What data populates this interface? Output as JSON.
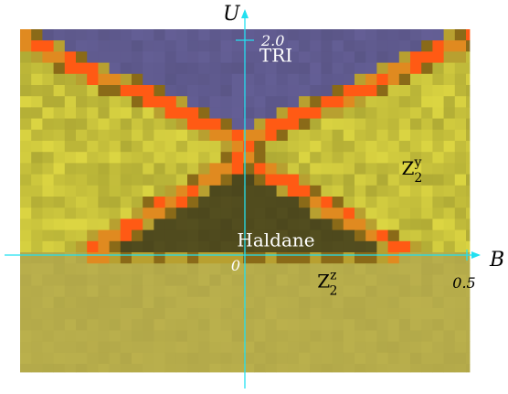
{
  "chart_data": {
    "type": "heatmap",
    "title": "",
    "xlabel": "B",
    "ylabel": "U",
    "x_ticks": [
      {
        "value": 0,
        "label": "0"
      },
      {
        "value": 0.5,
        "label": "0.5"
      }
    ],
    "y_ticks": [
      {
        "value": 2.0,
        "label": "2.0"
      }
    ],
    "xlim": [
      -0.52,
      0.52
    ],
    "ylim": [
      -0.55,
      2.05
    ],
    "phases": [
      {
        "name": "TRI",
        "label_main": "TRI",
        "label_sub": "",
        "label_sup": "",
        "color": "#5f5a8e",
        "label_at": [
          0.07,
          1.8
        ]
      },
      {
        "name": "Haldane",
        "label_main": "Haldane",
        "label_sub": "",
        "label_sup": "",
        "color": "#504b1e",
        "label_at": [
          0.07,
          0.08
        ]
      },
      {
        "name": "Z2y",
        "label_main": "Z",
        "label_sub": "2",
        "label_sup": "y",
        "color": "#c8c23c",
        "label_at": [
          0.39,
          0.75
        ]
      },
      {
        "name": "Z2z",
        "label_main": "Z",
        "label_sub": "2",
        "label_sup": "z",
        "color": "#b7ad4b",
        "label_at": [
          0.2,
          -0.3
        ]
      }
    ],
    "boundaries": {
      "tri_lower_edge": [
        [
          -0.5,
          2.0
        ],
        [
          0,
          1.05
        ],
        [
          0.5,
          2.0
        ]
      ],
      "haldane_upper_edge": [
        [
          -0.37,
          0
        ],
        [
          0,
          0.9
        ],
        [
          0.37,
          0
        ]
      ],
      "haldane_lower_edge": [
        [
          -0.37,
          0
        ],
        [
          -0.3,
          -0.12
        ],
        [
          0.3,
          -0.12
        ],
        [
          0.37,
          0
        ]
      ]
    },
    "boundary_color": "#ff5a14",
    "axis_color": "#22e0f0",
    "origin_label": "0"
  }
}
